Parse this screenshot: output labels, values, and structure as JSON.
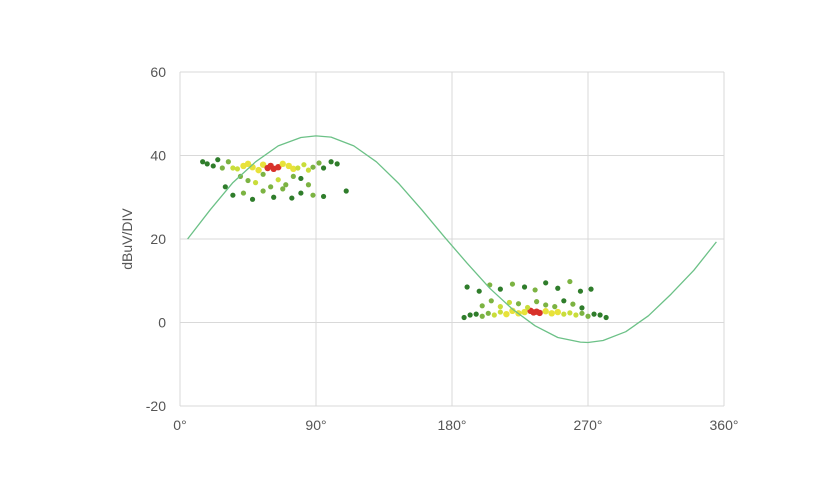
{
  "colors": {
    "grid": "#d9d9d9",
    "sine": "#6cc187",
    "dot_dark": "#2f7d2b",
    "dot_mid": "#7cb342",
    "dot_light": "#c9dd3a",
    "dot_yellow": "#e8e23a",
    "dot_red": "#d8322a"
  },
  "chart_data": {
    "type": "scatter",
    "title": "",
    "xlabel": "",
    "ylabel": "dBuV/DIV",
    "xlim": [
      0,
      360
    ],
    "ylim": [
      -20,
      60
    ],
    "x_ticks": [
      0,
      90,
      180,
      270,
      360
    ],
    "x_tick_labels": [
      "0°",
      "90°",
      "180°",
      "270°",
      "360°"
    ],
    "y_ticks": [
      -20,
      0,
      20,
      40,
      60
    ],
    "y_tick_labels": [
      "-20",
      "0",
      "20",
      "40",
      "60"
    ],
    "grid": true,
    "legend": "none",
    "series": [
      {
        "kind": "line",
        "color": "#6cc187",
        "x": [
          5,
          20,
          35,
          50,
          65,
          80,
          90,
          100,
          115,
          130,
          145,
          160,
          175,
          190,
          205,
          220,
          235,
          250,
          265,
          270,
          280,
          295,
          310,
          325,
          340,
          355
        ],
        "y": [
          20,
          27,
          33.5,
          38.5,
          42.3,
          44.3,
          44.7,
          44.4,
          42.3,
          38.5,
          33.2,
          27,
          20.5,
          14.2,
          8.2,
          3.2,
          -0.8,
          -3.6,
          -4.7,
          -4.8,
          -4.3,
          -2.2,
          1.6,
          6.8,
          12.5,
          19.3
        ]
      },
      {
        "kind": "scatter",
        "clusters": [
          {
            "x": [
              15,
              18,
              22,
              25,
              28,
              32,
              35,
              38,
              42,
              45,
              48,
              52,
              55,
              58,
              60,
              62,
              65,
              68,
              72,
              75,
              78,
              82,
              85,
              88,
              92,
              95,
              100,
              104,
              40,
              45,
              50,
              55,
              60,
              65,
              70,
              75,
              80,
              85,
              30,
              35,
              42,
              48,
              55,
              62,
              68,
              74,
              80,
              88,
              95,
              110
            ],
            "y": [
              38.5,
              38,
              37.5,
              39,
              37,
              38.5,
              37,
              36.8,
              37.5,
              38,
              37.2,
              36.5,
              37.8,
              37,
              37.5,
              36.8,
              37.2,
              38,
              37.5,
              36.8,
              37,
              37.8,
              36.5,
              37.2,
              38.2,
              37,
              38.5,
              38,
              35,
              34,
              33.5,
              35.5,
              32.5,
              34.2,
              33,
              35,
              34.5,
              33,
              32.5,
              30.5,
              31,
              29.5,
              31.5,
              30,
              32,
              29.8,
              31,
              30.5,
              30.2,
              31.5
            ],
            "levels": [
              0,
              0,
              0,
              0,
              1,
              1,
              2,
              2,
              3,
              3,
              3,
              3,
              3,
              4,
              4,
              4,
              4,
              3,
              3,
              3,
              2,
              2,
              2,
              1,
              1,
              0,
              0,
              0,
              1,
              1,
              2,
              1,
              1,
              2,
              1,
              1,
              0,
              1,
              0,
              0,
              1,
              0,
              1,
              0,
              1,
              0,
              0,
              1,
              0,
              0
            ]
          },
          {
            "x": [
              188,
              192,
              196,
              200,
              204,
              208,
              212,
              216,
              220,
              224,
              228,
              232,
              234,
              236,
              238,
              242,
              246,
              250,
              254,
              258,
              262,
              266,
              270,
              274,
              278,
              282,
              200,
              206,
              212,
              218,
              224,
              230,
              236,
              242,
              248,
              254,
              260,
              266,
              190,
              198,
              205,
              212,
              220,
              228,
              235,
              242,
              250,
              258,
              265,
              272
            ],
            "y": [
              1.2,
              1.8,
              2,
              1.5,
              2.2,
              1.8,
              2.5,
              2,
              2.8,
              2.2,
              2.5,
              2.8,
              2.4,
              2.6,
              2.3,
              2.7,
              2.2,
              2.5,
              2,
              2.3,
              1.8,
              2.2,
              1.5,
              2,
              1.8,
              1.2,
              4,
              5.2,
              3.8,
              4.8,
              4.5,
              3.6,
              5,
              4.2,
              3.8,
              5.2,
              4.4,
              3.5,
              8.5,
              7.5,
              9,
              8,
              9.2,
              8.5,
              7.8,
              9.5,
              8.2,
              9.8,
              7.5,
              8
            ],
            "levels": [
              0,
              0,
              0,
              1,
              1,
              2,
              2,
              3,
              3,
              3,
              3,
              4,
              4,
              4,
              4,
              3,
              3,
              3,
              2,
              2,
              2,
              1,
              1,
              0,
              0,
              0,
              1,
              1,
              2,
              2,
              1,
              2,
              1,
              1,
              1,
              0,
              1,
              0,
              0,
              0,
              1,
              0,
              1,
              0,
              1,
              0,
              0,
              1,
              0,
              0
            ]
          }
        ]
      }
    ]
  }
}
